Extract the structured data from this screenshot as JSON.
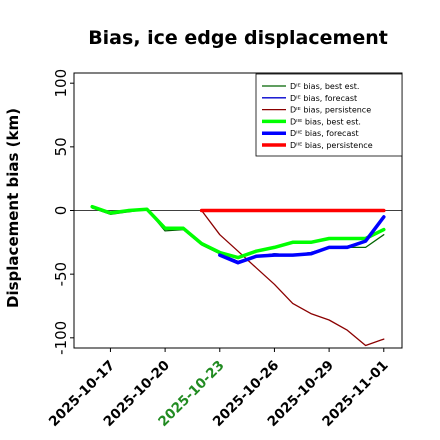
{
  "chart_data": {
    "type": "line",
    "title": "Bias, ice edge displacement",
    "ylabel": "Displacement bias (km)",
    "xlabel": "",
    "ylim": [
      -108,
      108
    ],
    "yticks": [
      100,
      50,
      0,
      -50,
      -100
    ],
    "xrange": [
      "2025-10-15",
      "2025-11-02"
    ],
    "xticks": [
      {
        "date": "2025-10-17",
        "label": "2025-10-17",
        "color": "#000000"
      },
      {
        "date": "2025-10-20",
        "label": "2025-10-20",
        "color": "#000000"
      },
      {
        "date": "2025-10-23",
        "label": "2025-10-23",
        "color": "#228b22"
      },
      {
        "date": "2025-10-26",
        "label": "2025-10-26",
        "color": "#000000"
      },
      {
        "date": "2025-10-29",
        "label": "2025-10-29",
        "color": "#000000"
      },
      {
        "date": "2025-11-01",
        "label": "2025-11-01",
        "color": "#000000"
      }
    ],
    "zero_line": true,
    "grid": false,
    "legend_position": "upper-right",
    "series": [
      {
        "name": "Dᴵᴱ bias, best est.",
        "color": "#006400",
        "width": 1.3,
        "x": [
          "2025-10-16",
          "2025-10-17",
          "2025-10-18",
          "2025-10-19",
          "2025-10-20",
          "2025-10-21",
          "2025-10-22",
          "2025-10-23",
          "2025-10-24",
          "2025-10-25",
          "2025-10-26",
          "2025-10-27",
          "2025-10-28",
          "2025-10-29",
          "2025-10-30",
          "2025-10-31",
          "2025-11-01"
        ],
        "y": [
          2,
          -3,
          -1,
          1,
          -16,
          -15,
          -27,
          -34,
          -40,
          -36,
          -34,
          -35,
          -33,
          -29,
          -29,
          -29,
          -19
        ]
      },
      {
        "name": "Dᴵᴱ bias, forecast",
        "color": "#0000cd",
        "width": 1.3,
        "x": [
          "2025-10-23",
          "2025-10-24",
          "2025-10-25",
          "2025-10-26",
          "2025-10-27",
          "2025-10-28",
          "2025-10-29",
          "2025-10-30",
          "2025-10-31",
          "2025-11-01"
        ],
        "y": [
          -34,
          -40,
          -36,
          -34,
          -35,
          -33,
          -29,
          -28,
          -24,
          -6
        ]
      },
      {
        "name": "Dᴵᴱ bias, persistence",
        "color": "#8b0000",
        "width": 1.3,
        "x": [
          "2025-10-22",
          "2025-10-23",
          "2025-10-24",
          "2025-10-25",
          "2025-10-26",
          "2025-10-27",
          "2025-10-28",
          "2025-10-29",
          "2025-10-30",
          "2025-10-31",
          "2025-11-01"
        ],
        "y": [
          0,
          -19,
          -32,
          -45,
          -58,
          -73,
          -81,
          -86,
          -94,
          -106,
          -101
        ]
      },
      {
        "name": "Dᴵᴵᴱ bias, best est.",
        "color": "#00ff00",
        "width": 3.5,
        "x": [
          "2025-10-16",
          "2025-10-17",
          "2025-10-18",
          "2025-10-19",
          "2025-10-20",
          "2025-10-21",
          "2025-10-22",
          "2025-10-23",
          "2025-10-24",
          "2025-10-25",
          "2025-10-26",
          "2025-10-27",
          "2025-10-28",
          "2025-10-29",
          "2025-10-30",
          "2025-10-31",
          "2025-11-01"
        ],
        "y": [
          3,
          -2,
          0,
          1,
          -14,
          -14,
          -26,
          -33,
          -37,
          -32,
          -29,
          -25,
          -25,
          -22,
          -22,
          -22,
          -15
        ]
      },
      {
        "name": "Dᴵᴵᴱ bias, forecast",
        "color": "#0000ff",
        "width": 3.5,
        "x": [
          "2025-10-23",
          "2025-10-24",
          "2025-10-25",
          "2025-10-26",
          "2025-10-27",
          "2025-10-28",
          "2025-10-29",
          "2025-10-30",
          "2025-10-31",
          "2025-11-01"
        ],
        "y": [
          -35,
          -41,
          -36,
          -35,
          -35,
          -34,
          -29,
          -29,
          -24,
          -5
        ]
      },
      {
        "name": "Dᴵᴵᴱ bias, persistence",
        "color": "#ff0000",
        "width": 3.5,
        "x": [
          "2025-10-22",
          "2025-10-23",
          "2025-10-24",
          "2025-10-25",
          "2025-10-26",
          "2025-10-27",
          "2025-10-28",
          "2025-10-29",
          "2025-10-30",
          "2025-10-31",
          "2025-11-01"
        ],
        "y": [
          0,
          0,
          0,
          0,
          0,
          0,
          0,
          0,
          0,
          0,
          0
        ]
      }
    ]
  }
}
